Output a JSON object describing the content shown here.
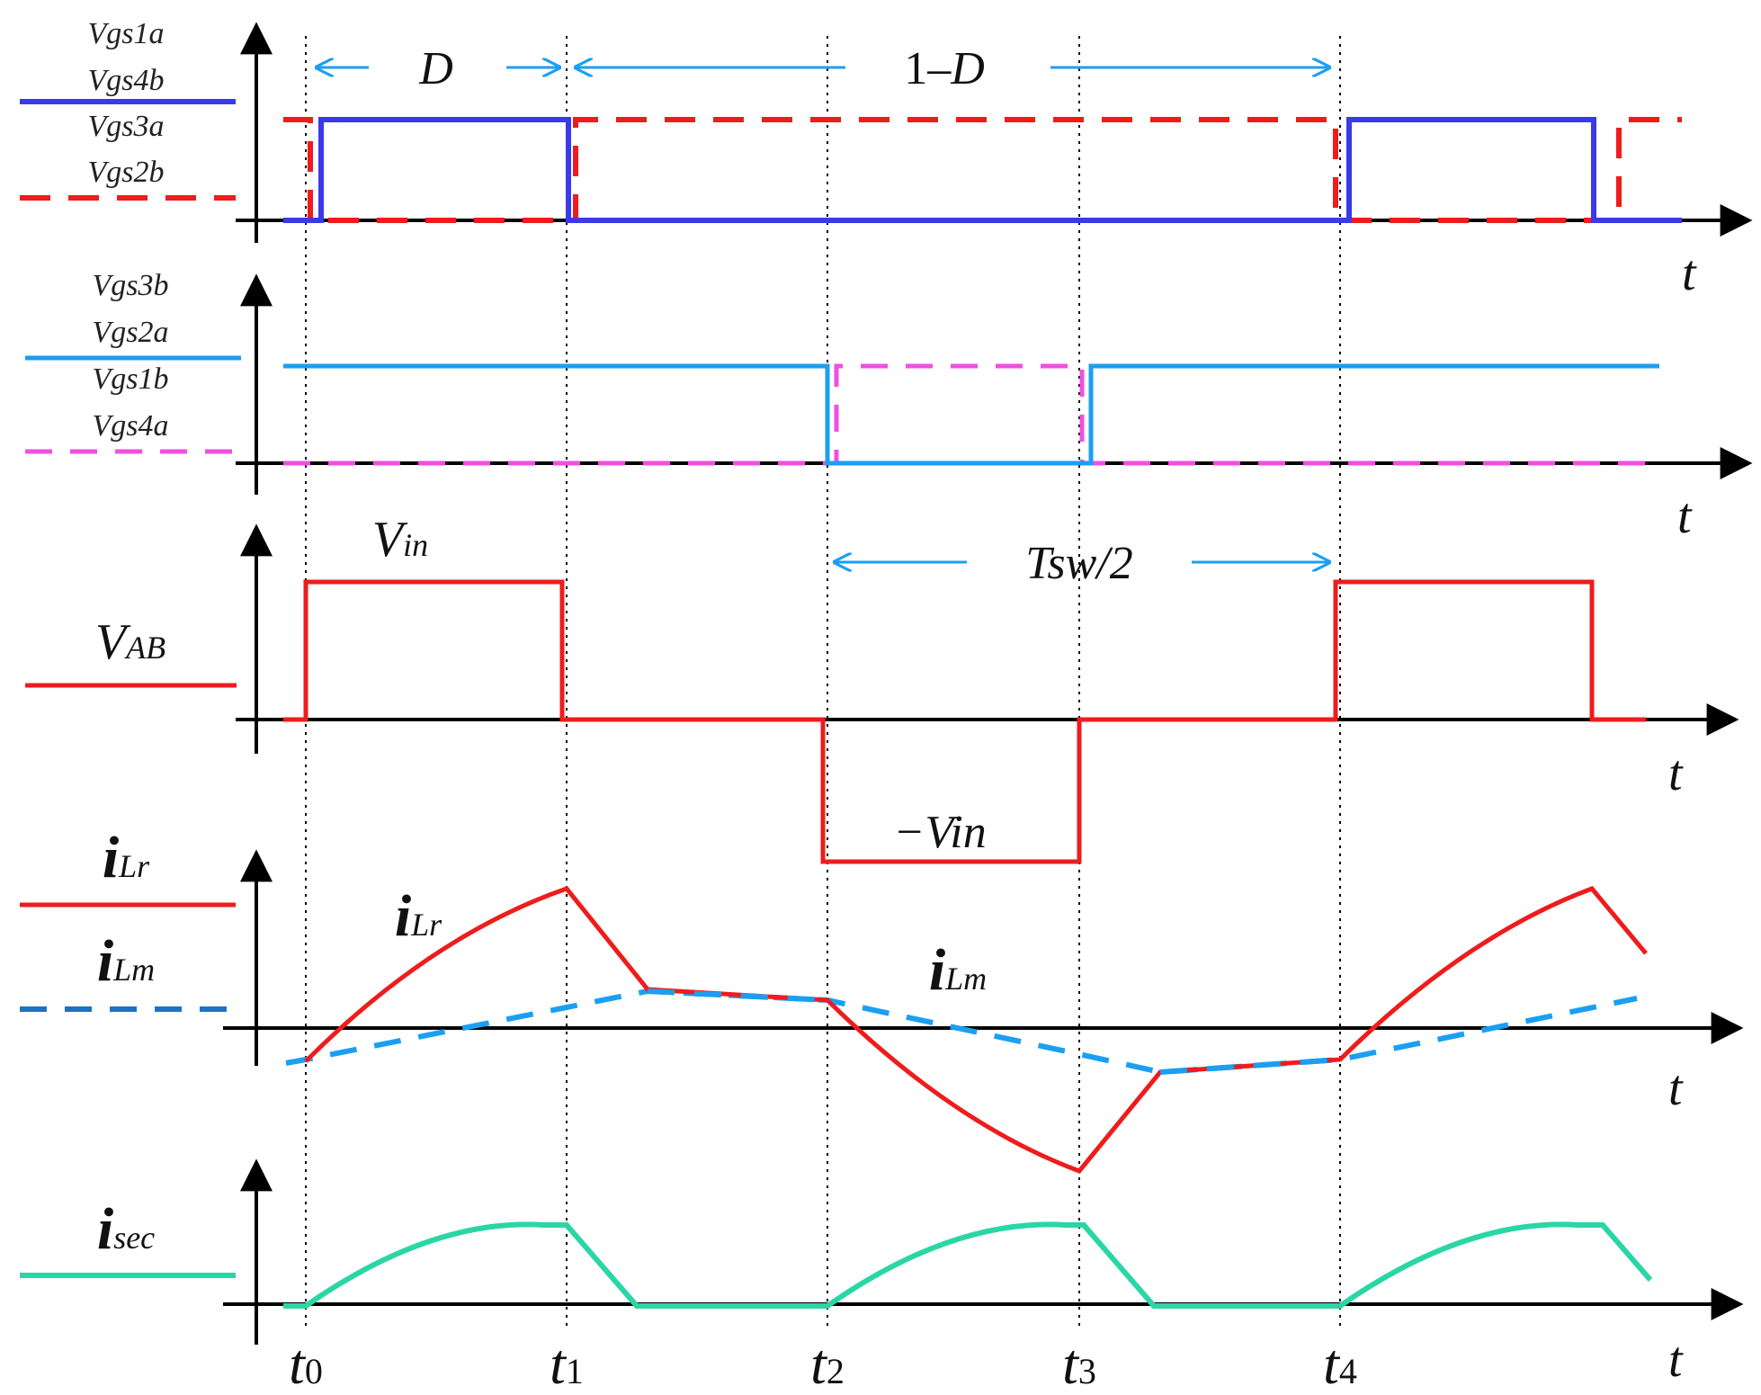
{
  "colors": {
    "blue_gate": "#3a3ae8",
    "red": "#ee1c1c",
    "light_blue": "#1a9ff2",
    "magenta": "#f04fe0",
    "dark_blue_dash": "#1a73c8",
    "teal": "#2ad6a6",
    "axis": "#000000",
    "annotation_arrow": "#1a9ff2"
  },
  "panels": {
    "gate1": {
      "labels": [
        "Vgs1a",
        "Vgs4b",
        "Vgs3a",
        "Vgs2b"
      ],
      "axis_label": "t"
    },
    "gate2": {
      "labels": [
        "Vgs3b",
        "Vgs2a",
        "Vgs1b",
        "Vgs4a"
      ],
      "axis_label": "t"
    },
    "vab": {
      "label_main": "V",
      "label_sub": "AB",
      "vin_main": "V",
      "vin_sub": "in",
      "neg_vin": "−Vin",
      "axis_label": "t"
    },
    "current": {
      "ilr_main": "i",
      "ilr_sub": "Lr",
      "ilm_main": "i",
      "ilm_sub": "Lm",
      "axis_label": "t"
    },
    "isec": {
      "label_main": "i",
      "label_sub": "sec",
      "axis_label": "t"
    }
  },
  "annotations": {
    "D": "D",
    "one_minus_D": "1–D",
    "one_minus_D_prefix": "1–",
    "tsw_half": "Tsw/2"
  },
  "time_markers": [
    {
      "main": "t",
      "sub": "0"
    },
    {
      "main": "t",
      "sub": "1"
    },
    {
      "main": "t",
      "sub": "2"
    },
    {
      "main": "t",
      "sub": "3"
    },
    {
      "main": "t",
      "sub": "4"
    }
  ]
}
